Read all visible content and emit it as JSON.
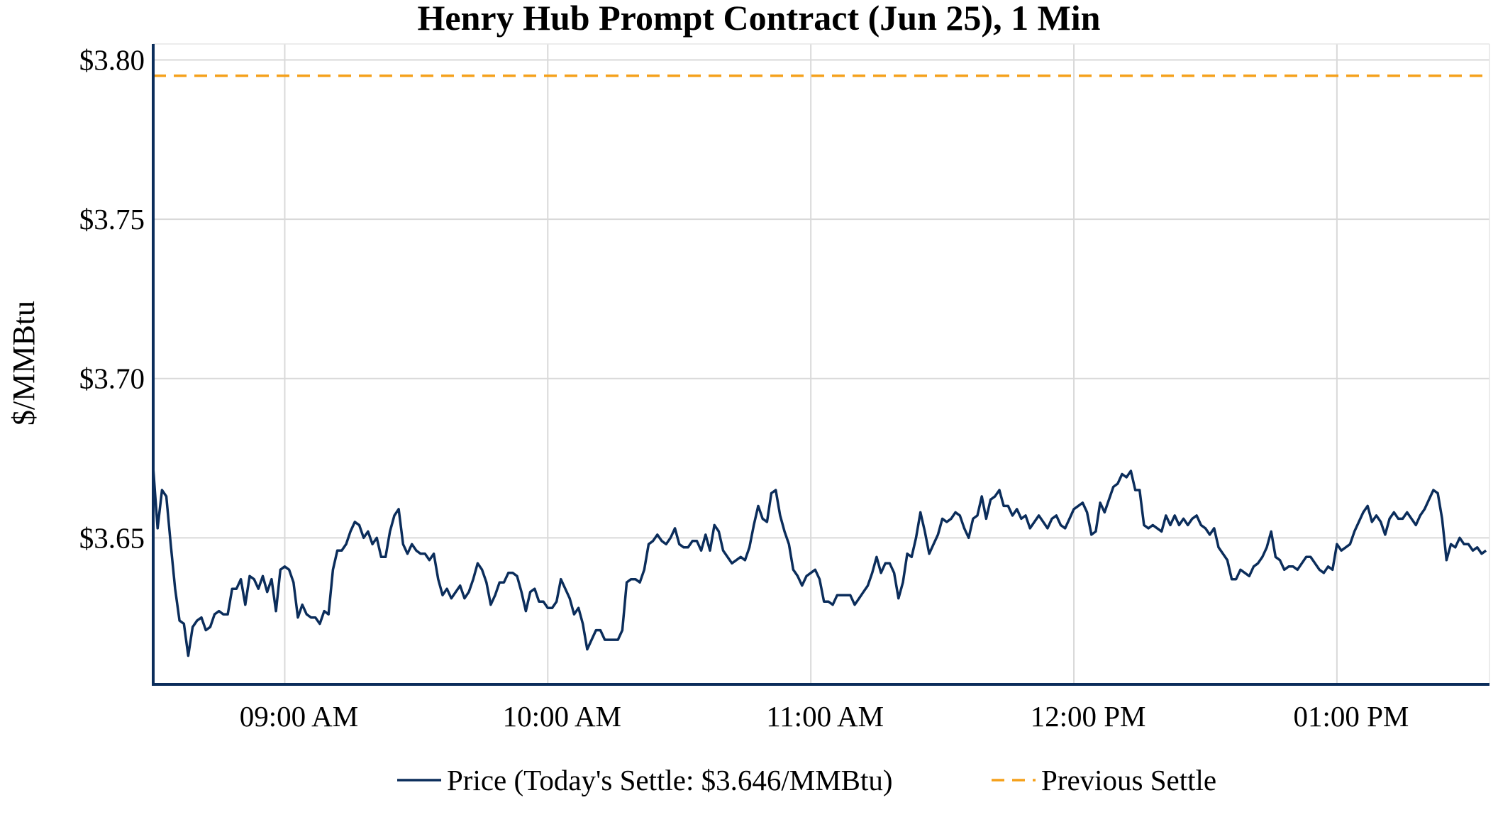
{
  "chart_data": {
    "type": "line",
    "title": "Henry Hub Prompt Contract (Jun 25), 1 Min",
    "ylabel": "$/MMBtu",
    "xlabel": "",
    "ylim": [
      3.604,
      3.805
    ],
    "xlim_minutes": [
      8.5,
      13.58
    ],
    "x_unit": "hour of day",
    "yticks": [
      {
        "value": 3.8,
        "label": "$3.80"
      },
      {
        "value": 3.75,
        "label": "$3.75"
      },
      {
        "value": 3.7,
        "label": "$3.70"
      },
      {
        "value": 3.65,
        "label": "$3.65"
      }
    ],
    "xticks": [
      {
        "value": 9,
        "label": "09:00 AM"
      },
      {
        "value": 10,
        "label": "10:00 AM"
      },
      {
        "value": 11,
        "label": "11:00 AM"
      },
      {
        "value": 12,
        "label": "12:00 PM"
      },
      {
        "value": 13,
        "label": "01:00 PM"
      }
    ],
    "grid": true,
    "legend_position": "bottom-center",
    "series": [
      {
        "name": "Price (Today's Settle: $3.646/MMBtu)",
        "color": "#0b2d5b",
        "style": "solid",
        "x_start": 8.5,
        "x_step_minutes": 1,
        "values": [
          3.672,
          3.653,
          3.665,
          3.663,
          3.648,
          3.634,
          3.624,
          3.623,
          3.613,
          3.622,
          3.624,
          3.625,
          3.621,
          3.622,
          3.626,
          3.627,
          3.626,
          3.626,
          3.634,
          3.634,
          3.637,
          3.629,
          3.638,
          3.637,
          3.634,
          3.638,
          3.633,
          3.637,
          3.627,
          3.64,
          3.641,
          3.64,
          3.636,
          3.625,
          3.629,
          3.626,
          3.625,
          3.625,
          3.623,
          3.627,
          3.626,
          3.64,
          3.646,
          3.646,
          3.648,
          3.652,
          3.655,
          3.654,
          3.65,
          3.652,
          3.648,
          3.65,
          3.644,
          3.644,
          3.652,
          3.657,
          3.659,
          3.648,
          3.645,
          3.648,
          3.646,
          3.645,
          3.645,
          3.643,
          3.645,
          3.637,
          3.632,
          3.634,
          3.631,
          3.633,
          3.635,
          3.631,
          3.633,
          3.637,
          3.642,
          3.64,
          3.636,
          3.629,
          3.632,
          3.636,
          3.636,
          3.639,
          3.639,
          3.638,
          3.633,
          3.627,
          3.633,
          3.634,
          3.63,
          3.63,
          3.628,
          3.628,
          3.63,
          3.637,
          3.634,
          3.631,
          3.626,
          3.628,
          3.623,
          3.615,
          3.618,
          3.621,
          3.621,
          3.618,
          3.618,
          3.618,
          3.618,
          3.621,
          3.636,
          3.637,
          3.637,
          3.636,
          3.64,
          3.648,
          3.649,
          3.651,
          3.649,
          3.648,
          3.65,
          3.653,
          3.648,
          3.647,
          3.647,
          3.649,
          3.649,
          3.646,
          3.651,
          3.646,
          3.654,
          3.652,
          3.646,
          3.644,
          3.642,
          3.643,
          3.644,
          3.643,
          3.647,
          3.654,
          3.66,
          3.656,
          3.655,
          3.664,
          3.665,
          3.657,
          3.652,
          3.648,
          3.64,
          3.638,
          3.635,
          3.638,
          3.639,
          3.64,
          3.637,
          3.63,
          3.63,
          3.629,
          3.632,
          3.632,
          3.632,
          3.632,
          3.629,
          3.631,
          3.633,
          3.635,
          3.639,
          3.644,
          3.639,
          3.642,
          3.642,
          3.639,
          3.631,
          3.636,
          3.645,
          3.644,
          3.65,
          3.658,
          3.652,
          3.645,
          3.648,
          3.651,
          3.656,
          3.655,
          3.656,
          3.658,
          3.657,
          3.653,
          3.65,
          3.656,
          3.657,
          3.663,
          3.656,
          3.662,
          3.663,
          3.665,
          3.66,
          3.66,
          3.657,
          3.659,
          3.656,
          3.657,
          3.653,
          3.655,
          3.657,
          3.655,
          3.653,
          3.656,
          3.657,
          3.654,
          3.653,
          3.656,
          3.659,
          3.66,
          3.661,
          3.658,
          3.651,
          3.652,
          3.661,
          3.658,
          3.662,
          3.666,
          3.667,
          3.67,
          3.669,
          3.671,
          3.665,
          3.665,
          3.654,
          3.653,
          3.654,
          3.653,
          3.652,
          3.657,
          3.654,
          3.657,
          3.654,
          3.656,
          3.654,
          3.656,
          3.657,
          3.654,
          3.653,
          3.651,
          3.653,
          3.647,
          3.645,
          3.643,
          3.637,
          3.637,
          3.64,
          3.639,
          3.638,
          3.641,
          3.642,
          3.644,
          3.647,
          3.652,
          3.644,
          3.643,
          3.64,
          3.641,
          3.641,
          3.64,
          3.642,
          3.644,
          3.644,
          3.642,
          3.64,
          3.639,
          3.641,
          3.64,
          3.648,
          3.646,
          3.647,
          3.648,
          3.652,
          3.655,
          3.658,
          3.66,
          3.655,
          3.657,
          3.655,
          3.651,
          3.656,
          3.658,
          3.656,
          3.656,
          3.658,
          3.656,
          3.654,
          3.657,
          3.659,
          3.662,
          3.665,
          3.664,
          3.656,
          3.643,
          3.648,
          3.647,
          3.65,
          3.648,
          3.648,
          3.646,
          3.647,
          3.645,
          3.646
        ]
      },
      {
        "name": "Previous Settle",
        "color": "#f5a01a",
        "style": "dashed",
        "value": 3.795
      }
    ]
  }
}
